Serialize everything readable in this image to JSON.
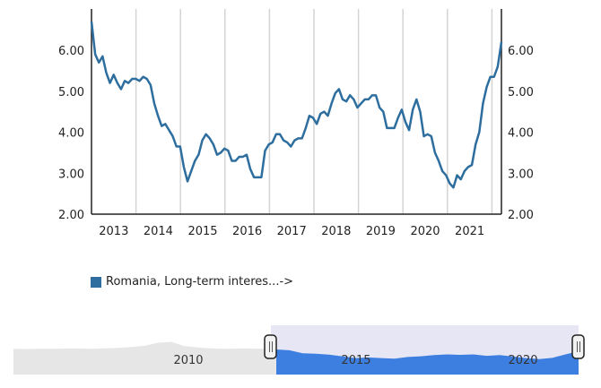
{
  "chart_data": {
    "type": "line",
    "title": "",
    "xlabel": "",
    "ylabel": "",
    "ylim": [
      2.0,
      7.0
    ],
    "y_ticks": [
      "2.00",
      "3.00",
      "4.00",
      "5.00",
      "6.00"
    ],
    "x_ticks": [
      "2013",
      "2014",
      "2015",
      "2016",
      "2017",
      "2018",
      "2019",
      "2020",
      "2021"
    ],
    "x_start": "2013-01",
    "frequency": "monthly",
    "grid": "vertical year lines",
    "legend_position": "bottom-left",
    "series": [
      {
        "name": "Romania, Long-term interes...->",
        "color": "#2e6e9e",
        "values": [
          6.7,
          5.9,
          5.7,
          5.85,
          5.45,
          5.2,
          5.4,
          5.2,
          5.05,
          5.25,
          5.2,
          5.3,
          5.3,
          5.25,
          5.35,
          5.3,
          5.15,
          4.7,
          4.4,
          4.15,
          4.2,
          4.05,
          3.9,
          3.65,
          3.65,
          3.15,
          2.8,
          3.05,
          3.3,
          3.45,
          3.8,
          3.95,
          3.85,
          3.7,
          3.45,
          3.5,
          3.6,
          3.55,
          3.3,
          3.3,
          3.4,
          3.4,
          3.45,
          3.1,
          2.9,
          2.9,
          2.9,
          3.55,
          3.7,
          3.75,
          3.95,
          3.95,
          3.8,
          3.75,
          3.65,
          3.8,
          3.85,
          3.85,
          4.1,
          4.4,
          4.35,
          4.2,
          4.45,
          4.5,
          4.4,
          4.7,
          4.95,
          5.05,
          4.8,
          4.75,
          4.9,
          4.8,
          4.6,
          4.7,
          4.8,
          4.8,
          4.9,
          4.9,
          4.6,
          4.5,
          4.1,
          4.1,
          4.1,
          4.35,
          4.55,
          4.25,
          4.05,
          4.55,
          4.8,
          4.5,
          3.9,
          3.95,
          3.9,
          3.5,
          3.3,
          3.05,
          2.95,
          2.75,
          2.65,
          2.95,
          2.85,
          3.05,
          3.15,
          3.2,
          3.7,
          4.0,
          4.7,
          5.1,
          5.35,
          5.35,
          5.6,
          6.2
        ]
      }
    ],
    "navigator": {
      "x_ticks": [
        "2010",
        "2015",
        "2020"
      ],
      "selected_range": [
        "2013",
        "2022"
      ],
      "selection_color": "#e6e6f5",
      "fill_color": "#3d7fe0",
      "unselected_color": "#e6e6e6",
      "values": [
        7.2,
        7.1,
        7.2,
        7.2,
        7.3,
        7.3,
        7.2,
        7.4,
        7.6,
        8.0,
        8.5,
        9.8,
        10.2,
        8.4,
        7.8,
        7.4,
        7.2,
        7.3,
        7.3,
        7.2,
        6.9,
        6.6,
        5.3,
        5.1,
        4.7,
        4.0,
        3.2,
        3.5,
        3.2,
        3.0,
        3.7,
        4.0,
        4.5,
        4.8,
        4.6,
        4.8,
        4.2,
        4.5,
        3.9,
        3.2,
        2.8,
        3.3,
        4.8,
        6.2
      ]
    }
  }
}
